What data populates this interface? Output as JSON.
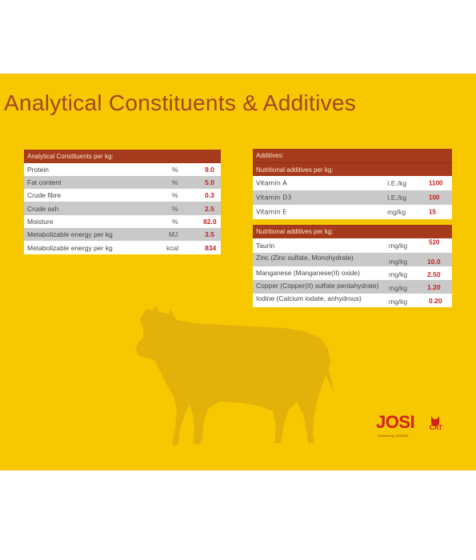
{
  "title": "Analytical Constituents & Additives",
  "colors": {
    "background": "#f7c800",
    "header": "#a53a1d",
    "title": "#a3461f",
    "value": "#c81e1e"
  },
  "analytical": {
    "header": "Analytical Constituents per kg:",
    "rows": [
      {
        "label": "Protein",
        "unit": "%",
        "value": "9.0"
      },
      {
        "label": "Fat content",
        "unit": "%",
        "value": "5.0"
      },
      {
        "label": "Crude fibre",
        "unit": "%",
        "value": "0.3"
      },
      {
        "label": "Crude ash",
        "unit": "%",
        "value": "2.5"
      },
      {
        "label": "Moisture",
        "unit": "%",
        "value": "82.0"
      },
      {
        "label": "Metabolizable energy per kg",
        "unit": "MJ",
        "value": "3.5"
      },
      {
        "label": "Metabolizable energy per kg",
        "unit": "kcal",
        "value": "834"
      }
    ]
  },
  "additives": {
    "header": "Additives:",
    "nutritional_header_1": "Nutritional additives per kg:",
    "vitamins": [
      {
        "label": "Vitamin A",
        "unit": "I.E./kg",
        "value": "1100"
      },
      {
        "label": "Vitamin D3",
        "unit": "I.E./kg",
        "value": "100"
      },
      {
        "label": "Vitamin E",
        "unit": "mg/kg",
        "value": "15"
      }
    ],
    "nutritional_header_2": "Nutritional additives per kg:",
    "minerals": [
      {
        "label": "Taurin",
        "unit": "mg/kg",
        "value": "520"
      },
      {
        "label": "Zinc (Zinc sulfate, Monohydrate)",
        "unit": "mg/kg",
        "value": "10.0"
      },
      {
        "label": "Manganese (Manganese(II) oxide)",
        "unit": "mg/kg",
        "value": "2.50"
      },
      {
        "label": "Copper (Copper(II) sulfate pentahydrate)",
        "unit": "mg/kg",
        "value": "1.20"
      },
      {
        "label": "Iodine (Calcium iodate, anhydrous)",
        "unit": "mg/kg",
        "value": "0.20"
      }
    ]
  },
  "logo": {
    "brand": "JOSI",
    "sub": "CAT",
    "byline": "Powered by JOSERA",
    "icon": "cat-icon"
  },
  "illustration": {
    "icon": "cow-icon"
  }
}
